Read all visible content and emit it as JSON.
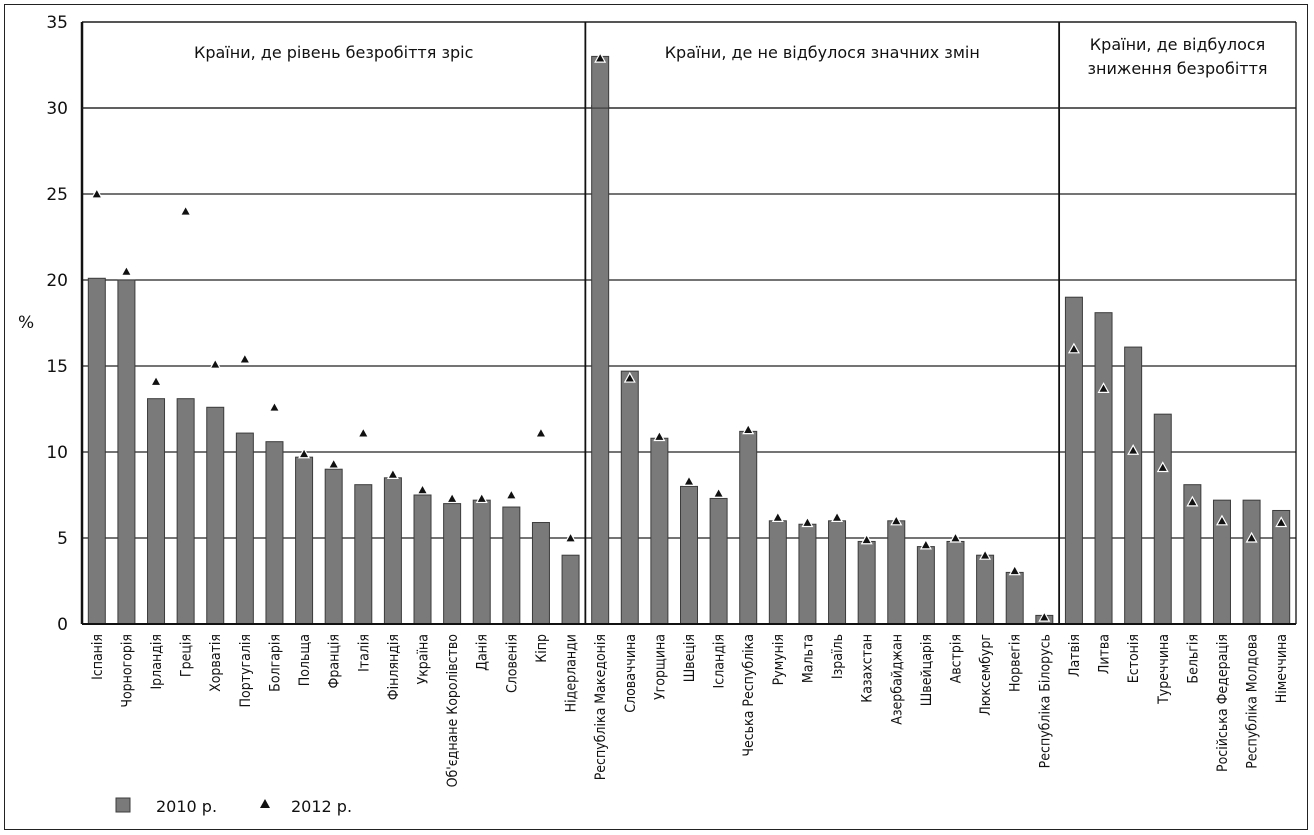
{
  "chart_data": {
    "type": "bar",
    "ylabel": "%",
    "ylim": [
      0,
      35
    ],
    "yticks": [
      "0",
      "5",
      "10",
      "15",
      "20",
      "25",
      "30",
      "35"
    ],
    "categories": [
      "Іспанія",
      "Чорногорія",
      "Ірландія",
      "Греція",
      "Хорватія",
      "Португалія",
      "Болгарія",
      "Польща",
      "Франція",
      "Італія",
      "Фінляндія",
      "Україна",
      "Об'єднане Королівство",
      "Данія",
      "Словенія",
      "Кіпр",
      "Нідерланди",
      "Республіка Македонія",
      "Словаччина",
      "Угорщина",
      "Швеція",
      "Ісландія",
      "Чеська Республіка",
      "Румунія",
      "Мальта",
      "Ізраїль",
      "Казахстан",
      "Азербайджан",
      "Швейцарія",
      "Австрія",
      "Люксембург",
      "Норвегія",
      "Республіка Білорусь",
      "Латвія",
      "Литва",
      "Естонія",
      "Туреччина",
      "Бельгія",
      "Російська Федерація",
      "Республіка Молдова",
      "Німеччина"
    ],
    "series": [
      {
        "name": "2010 р.",
        "kind": "bar",
        "values": [
          20.1,
          20.0,
          13.1,
          13.1,
          12.6,
          11.1,
          10.6,
          9.7,
          9.0,
          8.1,
          8.5,
          7.5,
          7.0,
          7.2,
          6.8,
          5.9,
          4.0,
          33.0,
          14.7,
          10.8,
          8.0,
          7.3,
          11.2,
          6.0,
          5.8,
          6.0,
          4.8,
          6.0,
          4.5,
          4.8,
          4.0,
          3.0,
          0.5,
          19.0,
          18.1,
          16.1,
          12.2,
          8.1,
          7.2,
          7.2,
          6.6
        ]
      },
      {
        "name": "2012 р.",
        "kind": "marker",
        "values": [
          25.0,
          20.5,
          14.1,
          24.0,
          15.1,
          15.4,
          12.6,
          9.9,
          9.3,
          11.1,
          8.7,
          7.8,
          7.3,
          7.3,
          7.5,
          11.1,
          5.0,
          32.9,
          14.3,
          10.9,
          8.3,
          7.6,
          11.3,
          6.2,
          5.9,
          6.2,
          4.9,
          6.0,
          4.6,
          5.0,
          4.0,
          3.1,
          0.4,
          16.0,
          13.7,
          10.1,
          9.1,
          7.1,
          6.0,
          5.0,
          5.9
        ]
      }
    ],
    "groups": [
      {
        "label_lines": [
          "Країни, де рівень безробіття зріс"
        ],
        "count": 17
      },
      {
        "label_lines": [
          "Країни, де не відбулося значних змін"
        ],
        "count": 16
      },
      {
        "label_lines": [
          "Країни, де відбулося",
          "зниження безробіття"
        ],
        "count": 8
      }
    ],
    "legend": [
      {
        "label": "2010 р.",
        "symbol": "square"
      },
      {
        "label": "2012 р.",
        "symbol": "triangle"
      }
    ],
    "colors": {
      "bar": "#7a7a7a",
      "bar_edge": "#3c3c3c",
      "marker": "#111111",
      "grid": "#222222"
    },
    "grid": true,
    "legend_position": "bottom-left"
  }
}
